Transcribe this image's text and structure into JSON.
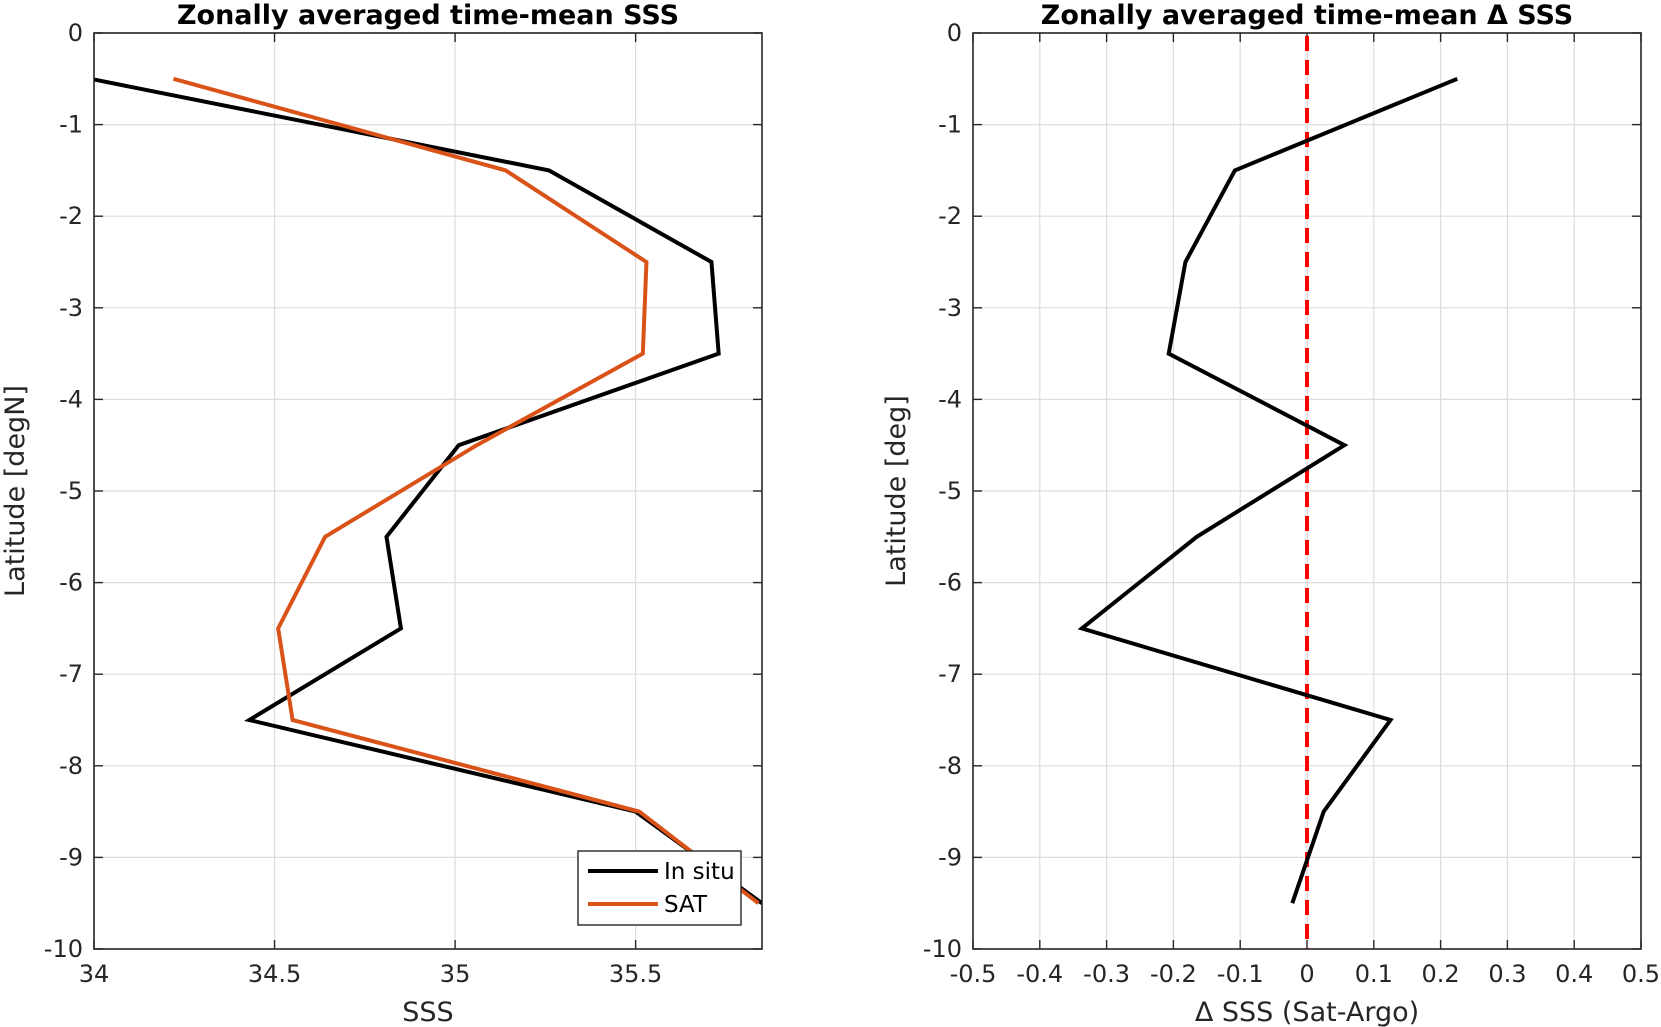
{
  "chart_data": [
    {
      "type": "line",
      "title": "Zonally averaged time-mean SSS",
      "xlabel": "SSS",
      "ylabel": "Latitude [degN]",
      "xlim": [
        34,
        35.85
      ],
      "ylim": [
        -10,
        0
      ],
      "xticks": [
        34,
        34.5,
        35,
        35.5
      ],
      "xtick_labels": [
        "34",
        "34.5",
        "35",
        "35.5"
      ],
      "yticks": [
        0,
        -1,
        -2,
        -3,
        -4,
        -5,
        -6,
        -7,
        -8,
        -9,
        -10
      ],
      "ytick_labels": [
        "0",
        "-1",
        "-2",
        "-3",
        "-4",
        "-5",
        "-6",
        "-7",
        "-8",
        "-9",
        "-10"
      ],
      "grid": true,
      "legend_position": "bottom-right",
      "latitudes": [
        -0.5,
        -1.5,
        -2.5,
        -3.5,
        -4.5,
        -5.5,
        -6.5,
        -7.5,
        -8.5,
        -9.5
      ],
      "series": [
        {
          "name": "In situ",
          "color": "#000000",
          "values": [
            33.99,
            35.26,
            35.71,
            35.73,
            35.01,
            34.81,
            34.85,
            34.43,
            35.5,
            35.85
          ]
        },
        {
          "name": "SAT",
          "color": "#d95319",
          "values": [
            34.22,
            35.14,
            35.53,
            35.52,
            35.06,
            34.64,
            34.51,
            34.55,
            35.51,
            35.84
          ]
        }
      ]
    },
    {
      "type": "line",
      "title": "Zonally averaged time-mean Δ SSS",
      "xlabel": "Δ SSS (Sat-Argo)",
      "ylabel": "Latitude [deg]",
      "xlim": [
        -0.5,
        0.5
      ],
      "ylim": [
        -10,
        0
      ],
      "xticks": [
        -0.5,
        -0.4,
        -0.3,
        -0.2,
        -0.1,
        0,
        0.1,
        0.2,
        0.3,
        0.4,
        0.5
      ],
      "xtick_labels": [
        "-0.5",
        "-0.4",
        "-0.3",
        "-0.2",
        "-0.1",
        "0",
        "0.1",
        "0.2",
        "0.3",
        "0.4",
        "0.5"
      ],
      "yticks": [
        0,
        -1,
        -2,
        -3,
        -4,
        -5,
        -6,
        -7,
        -8,
        -9,
        -10
      ],
      "ytick_labels": [
        "0",
        "-1",
        "-2",
        "-3",
        "-4",
        "-5",
        "-6",
        "-7",
        "-8",
        "-9",
        "-10"
      ],
      "grid": true,
      "latitudes": [
        -0.5,
        -1.5,
        -2.5,
        -3.5,
        -4.5,
        -5.5,
        -6.5,
        -7.5,
        -8.5,
        -9.5
      ],
      "series": [
        {
          "color": "#000000",
          "values": [
            0.225,
            -0.108,
            -0.182,
            -0.207,
            0.056,
            -0.165,
            -0.337,
            0.125,
            0.025,
            -0.022
          ]
        }
      ],
      "reference_line": {
        "x": 0,
        "color": "#ff0000",
        "style": "dashed"
      }
    }
  ]
}
